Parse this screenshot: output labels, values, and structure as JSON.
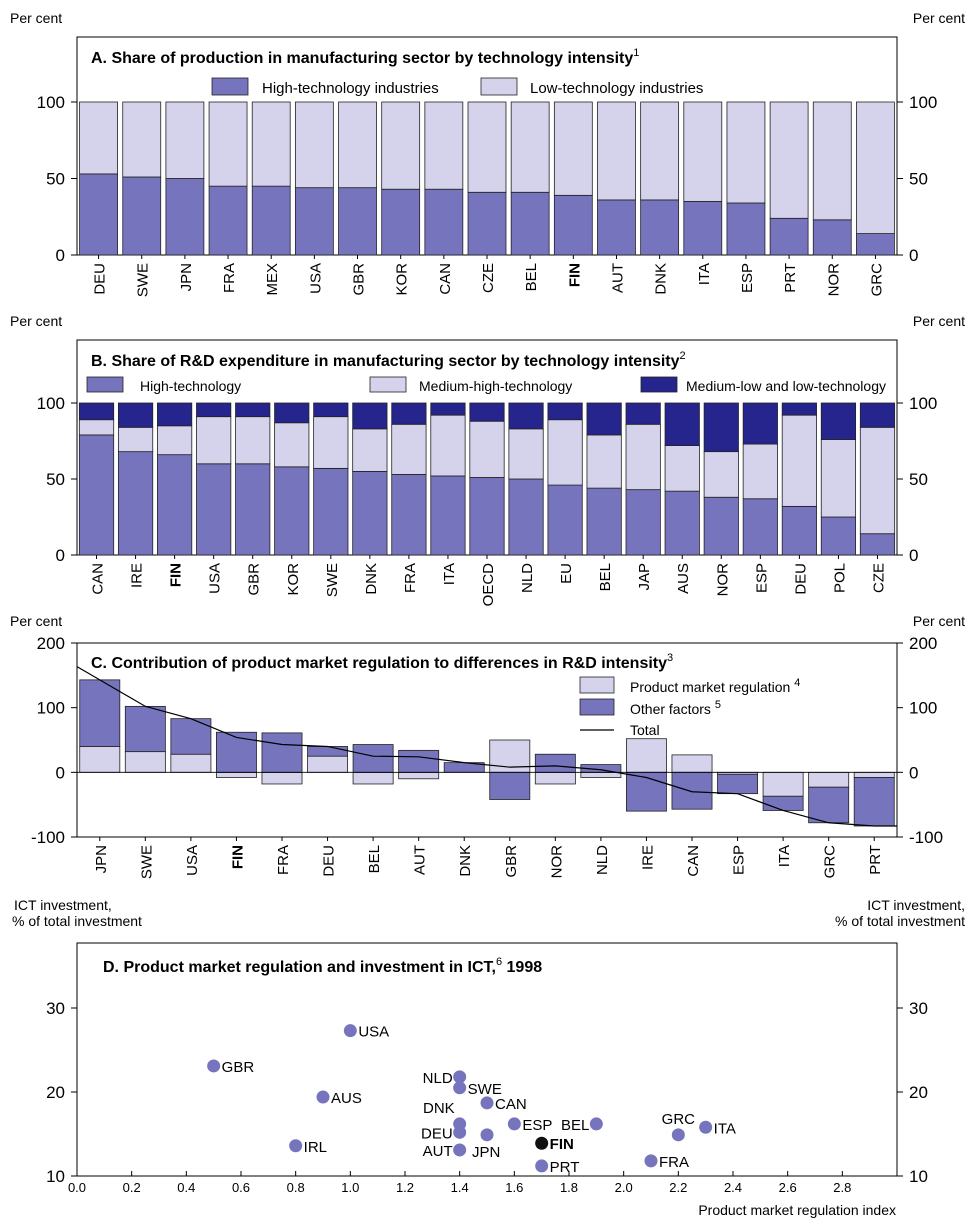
{
  "colors": {
    "high": "#7674bd",
    "low": "#d5d3eb",
    "dark": "#25258d",
    "finDot": "#111111",
    "frame": "#000000"
  },
  "common": {
    "per_cent": "Per cent"
  },
  "chart_data": [
    {
      "id": "A",
      "type": "bar",
      "stacked": true,
      "title": "A. Share of production in manufacturing sector by technology intensity",
      "title_sup": "1",
      "ylim": [
        0,
        100
      ],
      "yticks": [
        0,
        50,
        100
      ],
      "categories": [
        "DEU",
        "SWE",
        "JPN",
        "FRA",
        "MEX",
        "USA",
        "GBR",
        "KOR",
        "CAN",
        "CZE",
        "BEL",
        "FIN",
        "AUT",
        "DNK",
        "ITA",
        "ESP",
        "PRT",
        "NOR",
        "GRC"
      ],
      "bold_category": "FIN",
      "series": [
        {
          "name": "High-technology industries",
          "color_key": "high",
          "values": [
            53,
            51,
            50,
            45,
            45,
            44,
            44,
            43,
            43,
            41,
            41,
            39,
            36,
            36,
            35,
            34,
            24,
            23,
            14
          ]
        },
        {
          "name": "Low-technology industries",
          "color_key": "low",
          "values": [
            47,
            49,
            50,
            55,
            55,
            56,
            56,
            57,
            57,
            59,
            59,
            61,
            64,
            64,
            65,
            66,
            76,
            77,
            86
          ]
        }
      ]
    },
    {
      "id": "B",
      "type": "bar",
      "stacked": true,
      "title": "B. Share of R&D expenditure in manufacturing sector by technology intensity",
      "title_sup": "2",
      "ylim": [
        0,
        100
      ],
      "yticks": [
        0,
        50,
        100
      ],
      "categories": [
        "CAN",
        "IRE",
        "FIN",
        "USA",
        "GBR",
        "KOR",
        "SWE",
        "DNK",
        "FRA",
        "ITA",
        "OECD",
        "NLD",
        "EU",
        "BEL",
        "JAP",
        "AUS",
        "NOR",
        "ESP",
        "DEU",
        "POL",
        "CZE"
      ],
      "bold_category": "FIN",
      "series": [
        {
          "name": "High-technology",
          "color_key": "high",
          "values": [
            79,
            68,
            66,
            60,
            60,
            58,
            57,
            55,
            53,
            52,
            51,
            50,
            46,
            44,
            43,
            42,
            38,
            37,
            32,
            25,
            14
          ]
        },
        {
          "name": "Medium-high-technology",
          "color_key": "low",
          "values": [
            10,
            16,
            19,
            31,
            31,
            29,
            34,
            28,
            33,
            40,
            37,
            33,
            43,
            35,
            43,
            30,
            30,
            36,
            60,
            51,
            70
          ]
        },
        {
          "name": "Medium-low and low-technology",
          "color_key": "dark",
          "values": [
            11,
            16,
            15,
            9,
            9,
            13,
            9,
            17,
            14,
            8,
            12,
            17,
            11,
            21,
            14,
            28,
            32,
            27,
            8,
            24,
            16
          ]
        }
      ]
    },
    {
      "id": "C",
      "type": "bar",
      "stacked": true,
      "title": "C. Contribution of product market regulation to differences in R&D intensity",
      "title_sup": "3",
      "ylim": [
        -100,
        200
      ],
      "yticks": [
        -100,
        0,
        100,
        200
      ],
      "categories": [
        "JPN",
        "SWE",
        "USA",
        "FIN",
        "FRA",
        "DEU",
        "BEL",
        "AUT",
        "DNK",
        "GBR",
        "NOR",
        "NLD",
        "IRE",
        "CAN",
        "ESP",
        "ITA",
        "GRC",
        "PRT"
      ],
      "bold_category": "FIN",
      "series": [
        {
          "name": "Product market regulation",
          "sup": "4",
          "color_key": "low",
          "values": [
            40,
            32,
            28,
            -8,
            -18,
            25,
            -18,
            -10,
            0,
            50,
            -18,
            -8,
            52,
            27,
            -3,
            -37,
            -23,
            -8
          ]
        },
        {
          "name": "Other factors",
          "sup": "5",
          "color_key": "high",
          "values": [
            103,
            70,
            55,
            62,
            61,
            15,
            43,
            34,
            15,
            -42,
            28,
            12,
            -60,
            -57,
            -30,
            -22,
            -55,
            -75
          ]
        },
        {
          "name": "Total",
          "type": "line",
          "values": [
            143,
            102,
            83,
            54,
            43,
            40,
            25,
            24,
            15,
            8,
            10,
            4,
            -8,
            -30,
            -33,
            -59,
            -78,
            -83
          ]
        }
      ]
    },
    {
      "id": "D",
      "type": "scatter",
      "title": "D. Product market regulation and investment in ICT,",
      "title_sup": "6",
      "title_end": "1998",
      "xlabel": "Product market regulation index",
      "ylabel_line1": "ICT investment,",
      "ylabel_line2": "% of total investment",
      "xlim": [
        0,
        3.0
      ],
      "ylim": [
        10,
        35
      ],
      "xticks": [
        "0.0",
        "0.2",
        "0.4",
        "0.6",
        "0.8",
        "1.0",
        "1.2",
        "1.4",
        "1.6",
        "1.8",
        "2.0",
        "2.2",
        "2.4",
        "2.6",
        "2.8"
      ],
      "yticks": [
        10,
        20,
        30
      ],
      "points": [
        {
          "label": "USA",
          "x": 1.0,
          "y": 27.3,
          "pos": "right"
        },
        {
          "label": "GBR",
          "x": 0.5,
          "y": 23.1,
          "pos": "right"
        },
        {
          "label": "NLD",
          "x": 1.4,
          "y": 21.8,
          "pos": "left"
        },
        {
          "label": "SWE",
          "x": 1.4,
          "y": 20.5,
          "pos": "right"
        },
        {
          "label": "AUS",
          "x": 0.9,
          "y": 19.4,
          "pos": "right"
        },
        {
          "label": "CAN",
          "x": 1.5,
          "y": 18.7,
          "pos": "right"
        },
        {
          "label": "DNK",
          "x": 1.4,
          "y": 16.2,
          "pos": "above-left"
        },
        {
          "label": "ESP",
          "x": 1.6,
          "y": 16.2,
          "pos": "right"
        },
        {
          "label": "BEL",
          "x": 1.9,
          "y": 16.2,
          "pos": "left"
        },
        {
          "label": "ITA",
          "x": 2.3,
          "y": 15.8,
          "pos": "right"
        },
        {
          "label": "GRC",
          "x": 2.2,
          "y": 14.9,
          "pos": "above"
        },
        {
          "label": "DEU",
          "x": 1.4,
          "y": 15.2,
          "pos": "left"
        },
        {
          "label": "JPN",
          "x": 1.5,
          "y": 14.9,
          "pos": "below-right"
        },
        {
          "label": "FIN",
          "x": 1.7,
          "y": 13.9,
          "pos": "right",
          "highlight": true
        },
        {
          "label": "IRL",
          "x": 0.8,
          "y": 13.6,
          "pos": "right"
        },
        {
          "label": "AUT",
          "x": 1.4,
          "y": 13.1,
          "pos": "left"
        },
        {
          "label": "FRA",
          "x": 2.1,
          "y": 11.8,
          "pos": "right"
        },
        {
          "label": "PRT",
          "x": 1.7,
          "y": 11.2,
          "pos": "right"
        }
      ]
    }
  ]
}
